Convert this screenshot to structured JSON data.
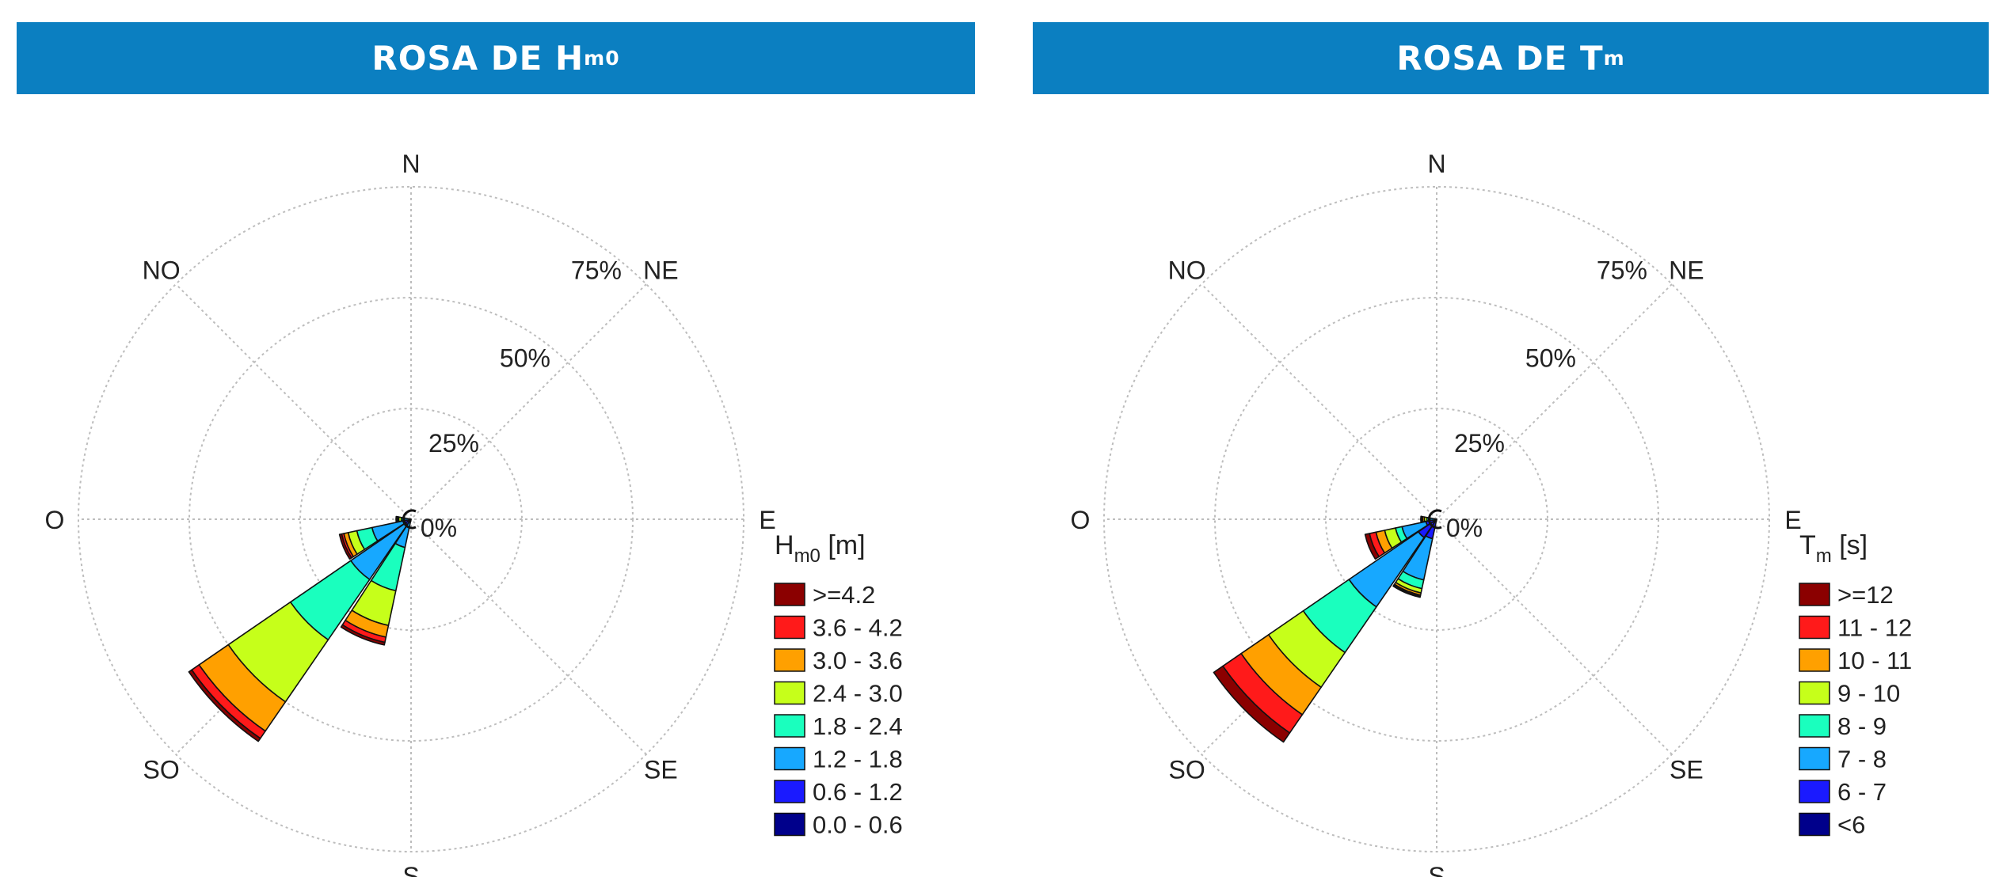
{
  "panels": [
    {
      "title_main": "ROSA DE H",
      "title_sub": "m0",
      "directions": [
        "N",
        "NE",
        "E",
        "SE",
        "S",
        "SO",
        "O",
        "NO"
      ],
      "ring_labels": [
        "0%",
        "25%",
        "50%",
        "75%"
      ],
      "legend": {
        "title_main": "H",
        "title_sub": "m0",
        "title_unit": " [m]",
        "items": [
          {
            "label": ">=4.2",
            "color": "#8b0000"
          },
          {
            "label": "3.6 - 4.2",
            "color": "#ff1a1a"
          },
          {
            "label": "3.0 - 3.6",
            "color": "#ffa000"
          },
          {
            "label": "2.4 - 3.0",
            "color": "#c6ff1a"
          },
          {
            "label": "1.8 - 2.4",
            "color": "#1affbe"
          },
          {
            "label": "1.2 - 1.8",
            "color": "#17a8ff"
          },
          {
            "label": "0.6 - 1.2",
            "color": "#1a1aff"
          },
          {
            "label": "0.0 - 0.6",
            "color": "#00008b"
          }
        ]
      }
    },
    {
      "title_main": "ROSA DE T",
      "title_sub": "m",
      "directions": [
        "N",
        "NE",
        "E",
        "SE",
        "S",
        "SO",
        "O",
        "NO"
      ],
      "ring_labels": [
        "0%",
        "25%",
        "50%",
        "75%"
      ],
      "legend": {
        "title_main": "T",
        "title_sub": "m",
        "title_unit": " [s]",
        "items": [
          {
            "label": ">=12",
            "color": "#8b0000"
          },
          {
            "label": "11 - 12",
            "color": "#ff1a1a"
          },
          {
            "label": "10 - 11",
            "color": "#ffa000"
          },
          {
            "label": "9 - 10",
            "color": "#c6ff1a"
          },
          {
            "label": "8 - 9",
            "color": "#1affbe"
          },
          {
            "label": "7 - 8",
            "color": "#17a8ff"
          },
          {
            "label": "6 - 7",
            "color": "#1a1aff"
          },
          {
            "label": "<6",
            "color": "#00008b"
          }
        ]
      }
    }
  ],
  "chart_data": [
    {
      "type": "wind-rose",
      "title": "ROSA DE Hm0",
      "legend_title": "Hm0 [m]",
      "radial_range": [
        0,
        75
      ],
      "radial_ticks": [
        0,
        25,
        50,
        75
      ],
      "radial_unit": "%",
      "grid": true,
      "legend_position": "bottom-right",
      "bins": [
        "0.0 - 0.6",
        "0.6 - 1.2",
        "1.2 - 1.8",
        "1.8 - 2.4",
        "2.4 - 3.0",
        "3.0 - 3.6",
        "3.6 - 4.2",
        ">=4.2"
      ],
      "sectors": [
        {
          "bearing": 202.5,
          "cumulative": [
            0.2,
            0.5,
            6.5,
            16.5,
            24.5,
            27.2,
            28.4,
            29.0
          ]
        },
        {
          "bearing": 225,
          "cumulative": [
            0.5,
            1.5,
            16.5,
            33.0,
            50.0,
            58.0,
            60.0,
            60.8
          ]
        },
        {
          "bearing": 247.5,
          "cumulative": [
            0.2,
            1.5,
            9.0,
            12.5,
            14.5,
            15.5,
            16.0,
            16.5
          ]
        },
        {
          "bearing": 270,
          "cumulative": [
            0.2,
            0.5,
            1.5,
            2.2,
            2.8,
            3.0,
            3.2,
            3.4
          ]
        }
      ]
    },
    {
      "type": "wind-rose",
      "title": "ROSA DE Tm",
      "legend_title": "Tm [s]",
      "radial_range": [
        0,
        75
      ],
      "radial_ticks": [
        0,
        25,
        50,
        75
      ],
      "radial_unit": "%",
      "grid": true,
      "legend_position": "bottom-right",
      "bins": [
        "<6",
        "6 - 7",
        "7 - 8",
        "8 - 9",
        "9 - 10",
        "10 - 11",
        "11 - 12",
        ">=12"
      ],
      "sectors": [
        {
          "bearing": 202.5,
          "cumulative": [
            0.5,
            4.5,
            14.0,
            16.0,
            17.0,
            17.5,
            17.8,
            18.0
          ]
        },
        {
          "bearing": 225,
          "cumulative": [
            1.0,
            5.0,
            24.0,
            36.5,
            46.0,
            53.5,
            58.5,
            61.0
          ]
        },
        {
          "bearing": 247.5,
          "cumulative": [
            0.5,
            2.5,
            8.0,
            9.5,
            12.0,
            14.0,
            15.5,
            16.5
          ]
        },
        {
          "bearing": 270,
          "cumulative": [
            0.2,
            0.5,
            1.5,
            2.2,
            2.8,
            3.2,
            3.5,
            3.6
          ]
        }
      ]
    }
  ]
}
